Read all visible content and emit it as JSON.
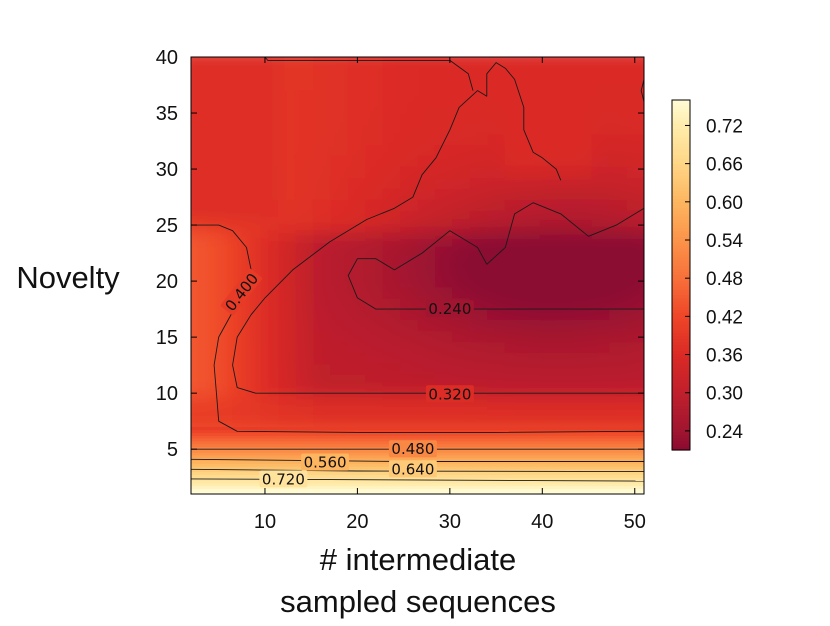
{
  "chart_data": {
    "type": "heatmap",
    "title": "",
    "xlabel_lines": [
      "# intermediate",
      "sampled sequences"
    ],
    "ylabel": "Novelty",
    "xlim": [
      2,
      51
    ],
    "ylim": [
      1,
      40
    ],
    "x_ticks": [
      10,
      20,
      30,
      40,
      50
    ],
    "y_ticks": [
      5,
      10,
      15,
      20,
      25,
      30,
      35,
      40
    ],
    "colormap": "YlOrRd",
    "colorbar": {
      "min": 0.21,
      "max": 0.76,
      "ticks": [
        0.72,
        0.66,
        0.6,
        0.54,
        0.48,
        0.42,
        0.36,
        0.3,
        0.24
      ],
      "tick_labels": [
        "0.72",
        "0.66",
        "0.60",
        "0.54",
        "0.48",
        "0.42",
        "0.36",
        "0.30",
        "0.24"
      ],
      "colors": {
        "0.21": "#8b0a30",
        "0.24": "#a01530",
        "0.30": "#c0202c",
        "0.36": "#db2a26",
        "0.42": "#ef4628",
        "0.48": "#f7703a",
        "0.54": "#fb944a",
        "0.60": "#fdb660",
        "0.66": "#fed686",
        "0.72": "#ffecac",
        "0.76": "#fffcd6"
      }
    },
    "contours": [
      {
        "level": 0.24,
        "label": "0.240",
        "label_at": [
          30,
          17.5
        ],
        "points": [
          [
            51,
            17.5
          ],
          [
            22,
            17.5
          ],
          [
            20,
            18.5
          ],
          [
            19,
            20.5
          ],
          [
            20,
            22
          ],
          [
            22,
            22
          ],
          [
            24,
            21
          ],
          [
            27,
            22.5
          ],
          [
            30,
            24.5
          ],
          [
            33,
            23
          ],
          [
            34,
            21.5
          ],
          [
            36,
            23
          ],
          [
            37,
            26
          ],
          [
            39,
            27
          ],
          [
            42,
            26
          ],
          [
            45,
            24
          ],
          [
            48,
            25
          ],
          [
            51,
            26.5
          ]
        ]
      },
      {
        "level": 0.32,
        "label": "0.320",
        "label_at": [
          30,
          9.9
        ],
        "points": [
          [
            51,
            10
          ],
          [
            9,
            10
          ],
          [
            7,
            10.5
          ],
          [
            6.5,
            12.5
          ],
          [
            7,
            15
          ],
          [
            8.5,
            17
          ],
          [
            10,
            18.5
          ],
          [
            13,
            21
          ],
          [
            17,
            23.5
          ],
          [
            21,
            25.5
          ],
          [
            24,
            26.5
          ],
          [
            26,
            27.5
          ],
          [
            27,
            29.5
          ],
          [
            28.5,
            31
          ],
          [
            30,
            33.5
          ],
          [
            31,
            35.5
          ],
          [
            33,
            37
          ],
          [
            34,
            36.5
          ],
          [
            34,
            38.5
          ],
          [
            35,
            39.5
          ],
          [
            36,
            39
          ],
          [
            37,
            38
          ],
          [
            38,
            35.5
          ],
          [
            38,
            33.5
          ],
          [
            39,
            31.5
          ],
          [
            40,
            31
          ],
          [
            41.5,
            30
          ],
          [
            42,
            29
          ]
        ]
      },
      {
        "level": 0.32,
        "label": "",
        "label_at": null,
        "points": [
          [
            51,
            36
          ],
          [
            50.7,
            37
          ],
          [
            51,
            38
          ]
        ]
      },
      {
        "level": 0.32,
        "label": "",
        "label_at": null,
        "points": [
          [
            10,
            40
          ],
          [
            10.3,
            39.7
          ],
          [
            30,
            39.7
          ],
          [
            32,
            38.5
          ],
          [
            32.5,
            37
          ]
        ]
      },
      {
        "level": 0.4,
        "label": "0.400",
        "label_at": [
          7.5,
          19
        ],
        "points": [
          [
            2,
            25
          ],
          [
            5,
            25
          ],
          [
            6.5,
            24.5
          ],
          [
            8,
            23
          ],
          [
            8.5,
            21
          ],
          [
            7,
            18
          ],
          [
            5,
            15
          ],
          [
            4.5,
            12.5
          ],
          [
            4.8,
            9.5
          ],
          [
            5,
            7.5
          ],
          [
            7,
            6.6
          ],
          [
            20,
            6.5
          ],
          [
            35,
            6.5
          ],
          [
            51,
            6.6
          ]
        ]
      },
      {
        "level": 0.48,
        "label": "0.480",
        "label_at": [
          26,
          5.0
        ],
        "points": [
          [
            2,
            5.0
          ],
          [
            51,
            5.0
          ]
        ]
      },
      {
        "level": 0.56,
        "label": "0.560",
        "label_at": [
          16.5,
          3.8
        ],
        "points": [
          [
            2,
            4.1
          ],
          [
            25,
            3.9
          ],
          [
            51,
            3.9
          ]
        ]
      },
      {
        "level": 0.64,
        "label": "0.640",
        "label_at": [
          26,
          3.2
        ],
        "points": [
          [
            2,
            3.2
          ],
          [
            20,
            3.05
          ],
          [
            51,
            3.0
          ]
        ]
      },
      {
        "level": 0.72,
        "label": "0.720",
        "label_at": [
          12,
          2.3
        ],
        "points": [
          [
            2,
            2.35
          ],
          [
            51,
            2.15
          ]
        ]
      }
    ]
  }
}
